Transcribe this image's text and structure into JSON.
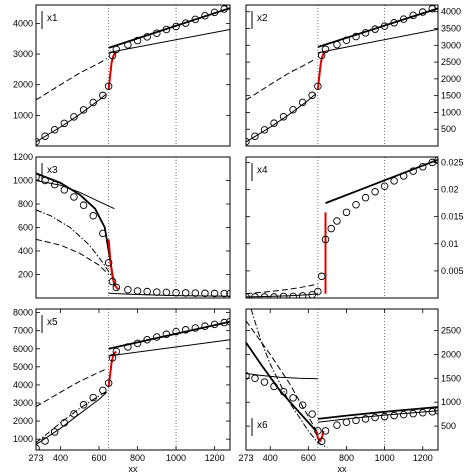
{
  "chart_data": [
    {
      "type": "line",
      "panel_label": "x1",
      "xlim": [
        273,
        1280
      ],
      "ylim": [
        0,
        4600
      ],
      "yaxis_side": "left",
      "yticks": [
        1000,
        2000,
        3000,
        4000
      ],
      "xticks": [],
      "xtick_labels": [],
      "xlabel": "",
      "vlines": [
        650,
        1000
      ],
      "series": [
        {
          "style": "solid-thin",
          "x": [
            273,
            400,
            500,
            600,
            640
          ],
          "y": [
            130,
            620,
            1030,
            1500,
            1700
          ]
        },
        {
          "style": "dashed",
          "x": [
            273,
            400,
            500,
            600,
            640
          ],
          "y": [
            1500,
            2000,
            2380,
            2700,
            2850
          ]
        },
        {
          "style": "solid-thick",
          "x": [
            650,
            1280
          ],
          "y": [
            3200,
            4500
          ]
        },
        {
          "style": "solid-thin",
          "x": [
            650,
            1280
          ],
          "y": [
            3050,
            3800
          ]
        },
        {
          "style": "red",
          "x": [
            650,
            658,
            665,
            672,
            680,
            690
          ],
          "y": [
            1850,
            2300,
            2700,
            2900,
            3000,
            3080
          ]
        },
        {
          "style": "markers",
          "x": [
            273,
            320,
            370,
            420,
            470,
            520,
            570,
            620,
            650,
            670,
            690,
            750,
            800,
            850,
            900,
            950,
            1000,
            1050,
            1100,
            1150,
            1200,
            1250,
            1280
          ],
          "y": [
            140,
            320,
            530,
            740,
            950,
            1180,
            1420,
            1650,
            1950,
            2950,
            3150,
            3300,
            3440,
            3560,
            3680,
            3800,
            3900,
            4010,
            4130,
            4250,
            4360,
            4470,
            4560
          ]
        }
      ]
    },
    {
      "type": "line",
      "panel_label": "x2",
      "xlim": [
        273,
        1280
      ],
      "ylim": [
        0,
        4200
      ],
      "yaxis_side": "right",
      "yticks": [
        500,
        1000,
        1500,
        2000,
        2500,
        3000,
        3500,
        4000
      ],
      "xticks": [],
      "xtick_labels": [],
      "xlabel": "",
      "vlines": [
        650,
        1000
      ],
      "series": [
        {
          "style": "solid-thin",
          "x": [
            273,
            400,
            500,
            600,
            640
          ],
          "y": [
            120,
            560,
            940,
            1360,
            1560
          ]
        },
        {
          "style": "dashed",
          "x": [
            273,
            400,
            500,
            600,
            640
          ],
          "y": [
            1370,
            1830,
            2180,
            2470,
            2600
          ]
        },
        {
          "style": "solid-thick",
          "x": [
            650,
            1280
          ],
          "y": [
            2950,
            4100
          ]
        },
        {
          "style": "solid-thin",
          "x": [
            650,
            1280
          ],
          "y": [
            2780,
            3480
          ]
        },
        {
          "style": "red",
          "x": [
            650,
            658,
            665,
            672,
            680,
            690
          ],
          "y": [
            1700,
            2100,
            2450,
            2650,
            2750,
            2820
          ]
        },
        {
          "style": "markers",
          "x": [
            273,
            320,
            370,
            420,
            470,
            520,
            570,
            620,
            650,
            670,
            690,
            750,
            800,
            850,
            900,
            950,
            1000,
            1050,
            1100,
            1150,
            1200,
            1250,
            1280
          ],
          "y": [
            130,
            290,
            480,
            680,
            870,
            1080,
            1300,
            1510,
            1780,
            2700,
            2880,
            3020,
            3150,
            3260,
            3370,
            3480,
            3570,
            3670,
            3780,
            3890,
            3990,
            4090,
            4170
          ]
        }
      ]
    },
    {
      "type": "line",
      "panel_label": "x3",
      "xlim": [
        273,
        1280
      ],
      "ylim": [
        0,
        1200
      ],
      "yaxis_side": "left",
      "yticks": [
        200,
        400,
        600,
        800,
        1000,
        1200
      ],
      "xticks": [],
      "xtick_labels": [],
      "xlabel": "",
      "vlines": [
        650,
        1000
      ],
      "series": [
        {
          "style": "solid-thin",
          "x": [
            273,
            400,
            500,
            600,
            680
          ],
          "y": [
            1000,
            960,
            900,
            820,
            760
          ]
        },
        {
          "style": "dashed",
          "x": [
            273,
            400,
            500,
            600,
            650
          ],
          "y": [
            500,
            450,
            380,
            280,
            200
          ]
        },
        {
          "style": "dashdot",
          "x": [
            273,
            350,
            450,
            550,
            620,
            680
          ],
          "y": [
            750,
            700,
            600,
            450,
            300,
            150
          ]
        },
        {
          "style": "solid-thick",
          "x": [
            273,
            400,
            500,
            580,
            630,
            660,
            680
          ],
          "y": [
            1060,
            980,
            880,
            760,
            600,
            300,
            100
          ]
        },
        {
          "style": "solid-thin",
          "x": [
            650,
            800,
            1000,
            1280
          ],
          "y": [
            40,
            30,
            20,
            15
          ]
        },
        {
          "style": "red",
          "x": [
            650,
            660,
            670,
            680,
            690,
            700
          ],
          "y": [
            500,
            300,
            180,
            120,
            90,
            75
          ]
        },
        {
          "style": "markers",
          "x": [
            273,
            320,
            370,
            420,
            470,
            520,
            570,
            620,
            650,
            670,
            690,
            750,
            800,
            850,
            900,
            950,
            1000,
            1050,
            1100,
            1150,
            1200,
            1250,
            1280
          ],
          "y": [
            1030,
            1000,
            965,
            920,
            860,
            790,
            700,
            550,
            300,
            140,
            90,
            70,
            60,
            55,
            50,
            48,
            45,
            44,
            42,
            40,
            39,
            38,
            38
          ]
        }
      ]
    },
    {
      "type": "line",
      "panel_label": "x4",
      "xlim": [
        273,
        1280
      ],
      "ylim": [
        0,
        0.026
      ],
      "yaxis_side": "right",
      "yticks": [
        0.005,
        0.01,
        0.015,
        0.02,
        0.025
      ],
      "xticks": [],
      "xtick_labels": [],
      "xlabel": "",
      "vlines": [
        650,
        1000
      ],
      "series": [
        {
          "style": "solid-thin",
          "x": [
            273,
            400,
            500,
            600,
            650
          ],
          "y": [
            0.0002,
            0.0003,
            0.0004,
            0.0006,
            0.0008
          ]
        },
        {
          "style": "dashed",
          "x": [
            273,
            400,
            500,
            600,
            650
          ],
          "y": [
            0.0008,
            0.0012,
            0.0016,
            0.0022,
            0.0026
          ]
        },
        {
          "style": "solid-thick",
          "x": [
            690,
            1280
          ],
          "y": [
            0.0175,
            0.0255
          ]
        },
        {
          "style": "red",
          "x": [
            690,
            690
          ],
          "y": [
            0.0008,
            0.0158
          ]
        },
        {
          "style": "markers",
          "x": [
            273,
            320,
            370,
            420,
            470,
            520,
            570,
            620,
            650,
            670,
            690,
            720,
            750,
            800,
            850,
            900,
            950,
            1000,
            1050,
            1100,
            1150,
            1200,
            1250,
            1280
          ],
          "y": [
            0.0002,
            0.0002,
            0.0002,
            0.0002,
            0.0003,
            0.0003,
            0.0004,
            0.0006,
            0.0012,
            0.004,
            0.0108,
            0.0128,
            0.0142,
            0.0158,
            0.0172,
            0.0185,
            0.0196,
            0.0206,
            0.0216,
            0.0225,
            0.0234,
            0.0242,
            0.025,
            0.0254
          ]
        }
      ]
    },
    {
      "type": "line",
      "panel_label": "x5",
      "xlim": [
        273,
        1280
      ],
      "ylim": [
        400,
        8200
      ],
      "yaxis_side": "left",
      "yticks": [
        1000,
        2000,
        3000,
        4000,
        5000,
        6000,
        7000,
        8000
      ],
      "xticks": [
        273,
        400,
        600,
        800,
        1000,
        1200
      ],
      "xtick_labels": [
        "273",
        "400",
        "600",
        "800",
        "1000",
        "1200"
      ],
      "xlabel": "xx",
      "vlines": [
        650,
        1000
      ],
      "series": [
        {
          "style": "solid-thin",
          "x": [
            273,
            400,
            500,
            600,
            640
          ],
          "y": [
            700,
            1600,
            2400,
            3200,
            3600
          ]
        },
        {
          "style": "dashed",
          "x": [
            273,
            400,
            500,
            600,
            640
          ],
          "y": [
            2800,
            3600,
            4200,
            4700,
            4900
          ]
        },
        {
          "style": "dashdot",
          "x": [
            273,
            400,
            500,
            600,
            640
          ],
          "y": [
            800,
            1900,
            2700,
            3400,
            3650
          ]
        },
        {
          "style": "solid-thick",
          "x": [
            650,
            1280
          ],
          "y": [
            6000,
            7500
          ]
        },
        {
          "style": "solid-thin",
          "x": [
            650,
            1280
          ],
          "y": [
            5600,
            6500
          ]
        },
        {
          "style": "red",
          "x": [
            650,
            658,
            665,
            672,
            680,
            690
          ],
          "y": [
            3900,
            4600,
            5200,
            5550,
            5750,
            5850
          ]
        },
        {
          "style": "markers",
          "x": [
            273,
            320,
            370,
            420,
            470,
            520,
            570,
            620,
            650,
            670,
            690,
            750,
            800,
            850,
            900,
            950,
            1000,
            1050,
            1100,
            1150,
            1200,
            1250,
            1280
          ],
          "y": [
            500,
            900,
            1400,
            1900,
            2400,
            2900,
            3300,
            3700,
            4100,
            5500,
            5850,
            6100,
            6300,
            6500,
            6650,
            6800,
            6950,
            7050,
            7150,
            7250,
            7350,
            7450,
            7500
          ]
        }
      ]
    },
    {
      "type": "line",
      "panel_label": "x6",
      "xlim": [
        273,
        1280
      ],
      "ylim": [
        0,
        2950
      ],
      "yaxis_side": "right",
      "yticks": [
        500,
        1000,
        1500,
        2000,
        2500
      ],
      "xticks": [
        273,
        400,
        600,
        800,
        1000,
        1200
      ],
      "xtick_labels": [
        "273",
        "400",
        "600",
        "800",
        "1000",
        "1200"
      ],
      "xlabel": "xx",
      "vlines": [
        650,
        1000
      ],
      "series": [
        {
          "style": "solid-thin",
          "x": [
            273,
            350,
            450,
            550,
            650
          ],
          "y": [
            1600,
            1560,
            1520,
            1500,
            1490
          ]
        },
        {
          "style": "dashed",
          "x": [
            273,
            400,
            500,
            600,
            650
          ],
          "y": [
            2700,
            2000,
            1400,
            700,
            350
          ]
        },
        {
          "style": "dashdot",
          "x": [
            300,
            350,
            400,
            450,
            500,
            550,
            600,
            650,
            700
          ],
          "y": [
            2950,
            2300,
            1800,
            1400,
            1000,
            700,
            400,
            150,
            50
          ]
        },
        {
          "style": "solid-thick",
          "x": [
            273,
            350,
            450,
            550,
            640
          ],
          "y": [
            2250,
            1800,
            1250,
            800,
            400
          ]
        },
        {
          "style": "solid-thick",
          "x": [
            650,
            800,
            1000,
            1280
          ],
          "y": [
            650,
            720,
            800,
            900
          ]
        },
        {
          "style": "solid-thin",
          "x": [
            650,
            800,
            1000,
            1280
          ],
          "y": [
            580,
            650,
            730,
            820
          ]
        },
        {
          "style": "red",
          "x": [
            640,
            650,
            660,
            670,
            680
          ],
          "y": [
            400,
            250,
            180,
            250,
            400
          ]
        },
        {
          "style": "markers",
          "x": [
            273,
            320,
            370,
            420,
            470,
            520,
            570,
            620,
            650,
            670,
            690,
            750,
            800,
            850,
            900,
            950,
            1000,
            1050,
            1100,
            1150,
            1200,
            1250,
            1280
          ],
          "y": [
            1550,
            1500,
            1420,
            1330,
            1220,
            1090,
            940,
            750,
            400,
            180,
            400,
            520,
            580,
            620,
            650,
            680,
            700,
            720,
            740,
            760,
            780,
            800,
            820
          ]
        }
      ]
    }
  ]
}
